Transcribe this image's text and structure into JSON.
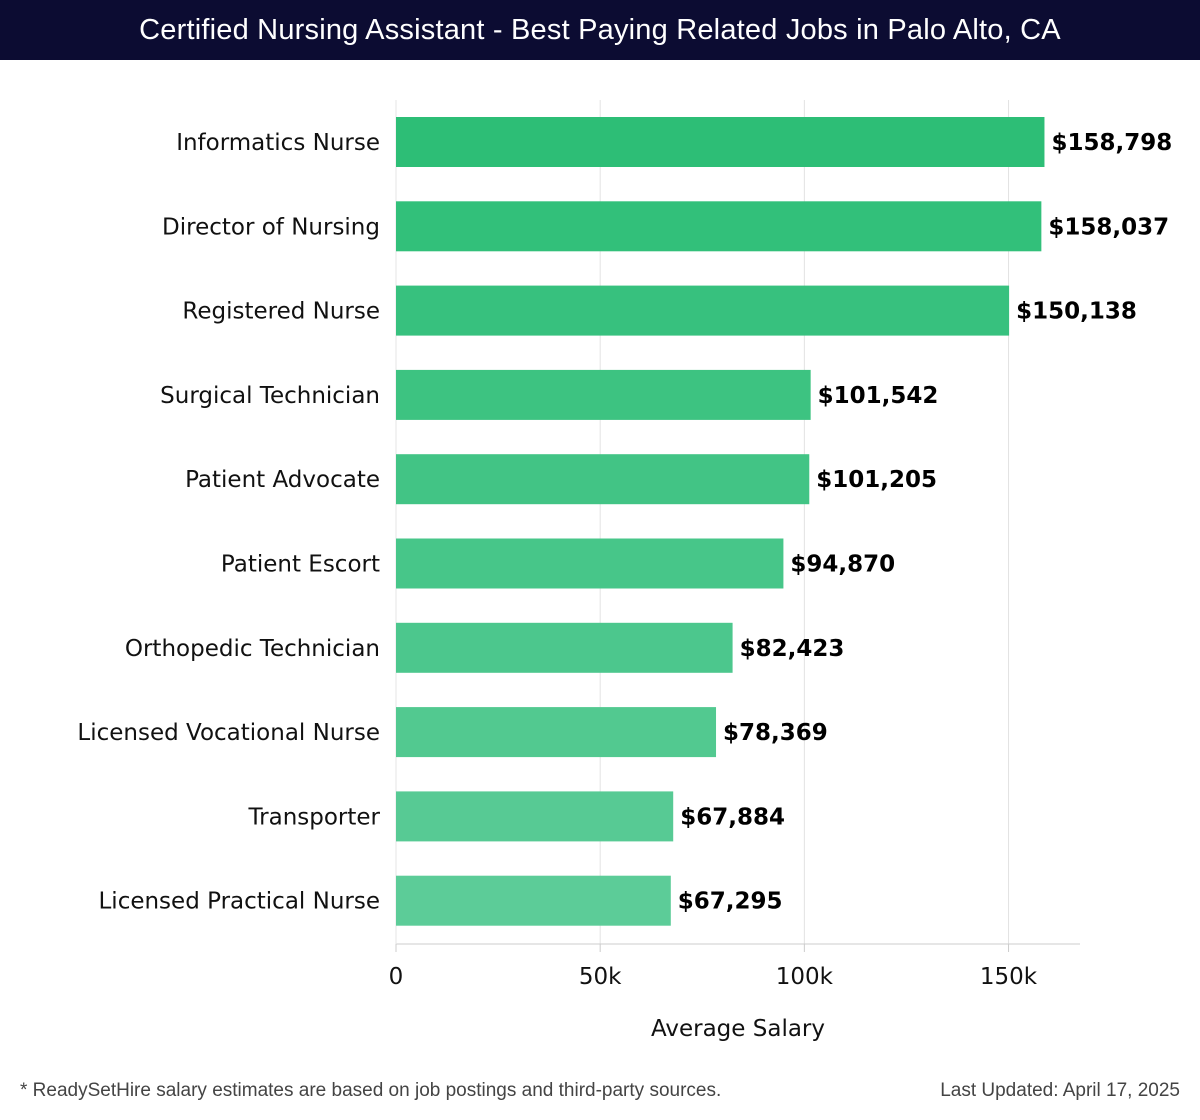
{
  "header": {
    "title": "Certified Nursing Assistant - Best Paying Related Jobs in Palo Alto, CA"
  },
  "footer": {
    "note": "* ReadySetHire salary estimates are based on job postings and third-party sources.",
    "updated": "Last Updated: April 17, 2025"
  },
  "colors": {
    "header_bg": "#0c0c32",
    "bar_top": "#2dbe76",
    "bar_bottom": "#5ccc98",
    "grid": "#e2e2e2"
  },
  "chart_data": {
    "type": "bar",
    "orientation": "horizontal",
    "categories": [
      "Informatics Nurse",
      "Director of Nursing",
      "Registered Nurse",
      "Surgical Technician",
      "Patient Advocate",
      "Patient Escort",
      "Orthopedic Technician",
      "Licensed Vocational Nurse",
      "Transporter",
      "Licensed Practical Nurse"
    ],
    "values": [
      158798,
      158037,
      150138,
      101542,
      101205,
      94870,
      82423,
      78369,
      67884,
      67295
    ],
    "value_labels": [
      "$158,798",
      "$158,037",
      "$150,138",
      "$101,542",
      "$101,205",
      "$94,870",
      "$82,423",
      "$78,369",
      "$67,884",
      "$67,295"
    ],
    "xlabel": "Average Salary",
    "xlim": [
      0,
      167500
    ],
    "xticks": [
      0,
      50000,
      100000,
      150000
    ],
    "xtick_labels": [
      "0",
      "50k",
      "100k",
      "150k"
    ],
    "grid": true
  }
}
